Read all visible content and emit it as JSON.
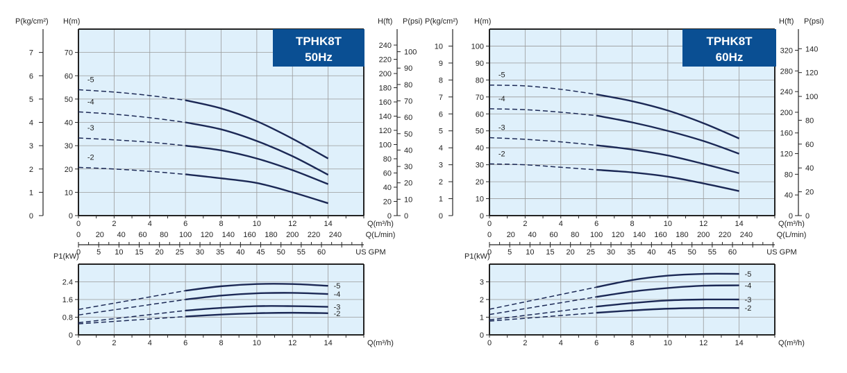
{
  "colors": {
    "plot_bg": "#dff0fb",
    "grid": "#9a9a9a",
    "curve": "#1b2855",
    "title_box": "#0a4f93",
    "title_text": "#ffffff"
  },
  "chart_data": [
    {
      "id": "head-50hz",
      "type": "line",
      "title": [
        "TPHK8T",
        "50Hz"
      ],
      "xlabel": "Q(m³/h)",
      "ylabel": "H(m)",
      "xlim": [
        0,
        16
      ],
      "ylim": [
        0,
        80
      ],
      "xticks": [
        0,
        2,
        4,
        6,
        8,
        10,
        12,
        14
      ],
      "yticks": [
        0,
        10,
        20,
        30,
        40,
        50,
        60,
        70
      ],
      "grid": true,
      "dashed_below_x": 6,
      "secondary_axes": {
        "kgcm2": {
          "label": "P(kg/cm²)",
          "ticks": [
            0,
            1,
            2,
            3,
            4,
            5,
            6,
            7
          ]
        },
        "ft": {
          "label": "H(ft)",
          "ticks": [
            0,
            20,
            40,
            60,
            80,
            100,
            120,
            140,
            160,
            180,
            200,
            220,
            240
          ]
        },
        "psi": {
          "label": "P(psi)",
          "ticks": [
            0,
            10,
            20,
            30,
            40,
            50,
            60,
            70,
            80,
            90,
            100
          ]
        },
        "lmin": {
          "label": "Q(L/min)",
          "ticks": [
            0,
            20,
            40,
            60,
            80,
            100,
            120,
            140,
            160,
            180,
            200,
            220,
            240
          ]
        },
        "gpm": {
          "label": "US GPM",
          "ticks": [
            0,
            5,
            10,
            15,
            20,
            25,
            30,
            35,
            40,
            45,
            50,
            55,
            60
          ]
        }
      },
      "x": [
        0,
        2,
        4,
        6,
        8,
        10,
        12,
        14
      ],
      "series": [
        {
          "name": "-5",
          "values": [
            54,
            53,
            51.5,
            49.5,
            46,
            40.5,
            33,
            24.5
          ]
        },
        {
          "name": "-4",
          "values": [
            44.5,
            43.5,
            42,
            40,
            37,
            32,
            25.5,
            17.5
          ]
        },
        {
          "name": "-3",
          "values": [
            33.3,
            32.5,
            31.5,
            30,
            28,
            24.5,
            19.5,
            13.5
          ]
        },
        {
          "name": "-2",
          "values": [
            20.7,
            20,
            19,
            17.7,
            16,
            14,
            10,
            5.3
          ]
        }
      ]
    },
    {
      "id": "head-60hz",
      "type": "line",
      "title": [
        "TPHK8T",
        "60Hz"
      ],
      "xlabel": "Q(m³/h)",
      "ylabel": "H(m)",
      "xlim": [
        0,
        16
      ],
      "ylim": [
        0,
        110
      ],
      "xticks": [
        0,
        2,
        4,
        6,
        8,
        10,
        12,
        14
      ],
      "yticks": [
        0,
        10,
        20,
        30,
        40,
        50,
        60,
        70,
        80,
        90,
        100
      ],
      "grid": true,
      "dashed_below_x": 6,
      "secondary_axes": {
        "kgcm2": {
          "label": "P(kg/cm²)",
          "ticks": [
            0,
            1,
            2,
            3,
            4,
            5,
            6,
            7,
            8,
            9,
            10
          ]
        },
        "ft": {
          "label": "H(ft)",
          "ticks": [
            0,
            40,
            80,
            120,
            160,
            200,
            240,
            280,
            320
          ]
        },
        "psi": {
          "label": "P(psi)",
          "ticks": [
            0,
            20,
            40,
            60,
            80,
            100,
            120,
            140
          ]
        },
        "lmin": {
          "label": "Q(L/min)",
          "ticks": [
            0,
            20,
            40,
            60,
            80,
            100,
            120,
            140,
            160,
            180,
            200,
            220,
            240
          ]
        },
        "gpm": {
          "label": "US GPM",
          "ticks": [
            0,
            5,
            10,
            15,
            20,
            25,
            30,
            35,
            40,
            45,
            50,
            55,
            60
          ]
        }
      },
      "x": [
        0,
        2,
        4,
        6,
        8,
        10,
        12,
        14
      ],
      "series": [
        {
          "name": "-5",
          "values": [
            77,
            76.5,
            74.5,
            71.5,
            67.5,
            62,
            54.5,
            45.5
          ]
        },
        {
          "name": "-4",
          "values": [
            63,
            62.5,
            61,
            59,
            55,
            50,
            44,
            36.5
          ]
        },
        {
          "name": "-3",
          "values": [
            46,
            45,
            43.5,
            41.5,
            39,
            35.5,
            30.5,
            25
          ]
        },
        {
          "name": "-2",
          "values": [
            30.5,
            30,
            28.5,
            27,
            25.5,
            23,
            19,
            14.5
          ]
        }
      ]
    },
    {
      "id": "power-50hz",
      "type": "line",
      "xlabel": "Q(m³/h)",
      "ylabel": "P1(kW)",
      "xlim": [
        0,
        16
      ],
      "ylim": [
        0,
        3.2
      ],
      "xticks": [
        0,
        2,
        4,
        6,
        8,
        10,
        12,
        14
      ],
      "yticks": [
        0,
        0.8,
        1.6,
        2.4
      ],
      "ytick_labels": [
        "0",
        "0.8",
        "1.6",
        "2.4"
      ],
      "grid": true,
      "dashed_below_x": 6,
      "x": [
        0,
        6,
        8,
        10,
        12,
        14
      ],
      "series": [
        {
          "name": "-5",
          "values": [
            1.15,
            2.0,
            2.2,
            2.3,
            2.3,
            2.22
          ]
        },
        {
          "name": "-4",
          "values": [
            0.9,
            1.6,
            1.78,
            1.88,
            1.9,
            1.85
          ]
        },
        {
          "name": "-3",
          "values": [
            0.55,
            1.1,
            1.22,
            1.3,
            1.3,
            1.27
          ]
        },
        {
          "name": "-2",
          "values": [
            0.5,
            0.83,
            0.92,
            0.98,
            1.0,
            0.98
          ]
        }
      ]
    },
    {
      "id": "power-60hz",
      "type": "line",
      "xlabel": "Q(m³/h)",
      "ylabel": "P1(kW)",
      "xlim": [
        0,
        16
      ],
      "ylim": [
        0,
        4
      ],
      "xticks": [
        0,
        2,
        4,
        6,
        8,
        10,
        12,
        14
      ],
      "yticks": [
        0,
        1,
        2,
        3
      ],
      "ytick_labels": [
        "0",
        "1",
        "2",
        "3"
      ],
      "grid": true,
      "dashed_below_x": 6,
      "x": [
        0,
        6,
        8,
        10,
        12,
        14
      ],
      "series": [
        {
          "name": "-5",
          "values": [
            1.45,
            2.7,
            3.1,
            3.35,
            3.45,
            3.45
          ]
        },
        {
          "name": "-4",
          "values": [
            1.15,
            2.15,
            2.45,
            2.65,
            2.78,
            2.8
          ]
        },
        {
          "name": "-3",
          "values": [
            0.85,
            1.6,
            1.8,
            1.95,
            2.0,
            2.0
          ]
        },
        {
          "name": "-2",
          "values": [
            0.78,
            1.25,
            1.38,
            1.48,
            1.52,
            1.52
          ]
        }
      ]
    }
  ]
}
